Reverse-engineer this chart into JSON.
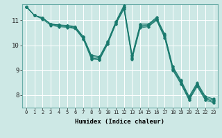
{
  "xlabel": "Humidex (Indice chaleur)",
  "bg_color": "#cde8e5",
  "grid_color": "#ffffff",
  "line_color": "#1a7a6e",
  "xlim": [
    -0.5,
    23.5
  ],
  "ylim": [
    7.5,
    11.65
  ],
  "xticks": [
    0,
    1,
    2,
    3,
    4,
    5,
    6,
    7,
    8,
    9,
    10,
    11,
    12,
    13,
    14,
    15,
    16,
    17,
    18,
    19,
    20,
    21,
    22,
    23
  ],
  "yticks": [
    8,
    9,
    10,
    11
  ],
  "series": [
    [
      11.55,
      11.2,
      11.1,
      10.85,
      10.82,
      10.8,
      10.75,
      10.35,
      9.6,
      9.55,
      10.15,
      10.95,
      11.6,
      9.6,
      10.85,
      10.85,
      11.12,
      10.45,
      9.15,
      8.6,
      7.95,
      8.5,
      7.95,
      7.85
    ],
    [
      11.55,
      11.2,
      11.1,
      10.85,
      10.82,
      10.78,
      10.73,
      10.32,
      9.55,
      9.5,
      10.12,
      10.92,
      11.55,
      9.55,
      10.8,
      10.82,
      11.08,
      10.4,
      9.1,
      8.55,
      7.9,
      8.45,
      7.9,
      7.8
    ],
    [
      11.55,
      11.2,
      11.1,
      10.85,
      10.78,
      10.75,
      10.7,
      10.28,
      9.5,
      9.45,
      10.08,
      10.88,
      11.5,
      9.5,
      10.75,
      10.78,
      11.04,
      10.35,
      9.05,
      8.5,
      7.85,
      8.4,
      7.85,
      7.75
    ],
    [
      11.55,
      11.2,
      11.05,
      10.8,
      10.75,
      10.72,
      10.67,
      10.25,
      9.45,
      9.42,
      10.05,
      10.85,
      11.45,
      9.45,
      10.7,
      10.75,
      11.0,
      10.3,
      9.0,
      8.45,
      7.8,
      8.35,
      7.8,
      7.7
    ]
  ],
  "xlabel_fontsize": 6.5,
  "xtick_fontsize": 5.0,
  "ytick_fontsize": 6.5
}
